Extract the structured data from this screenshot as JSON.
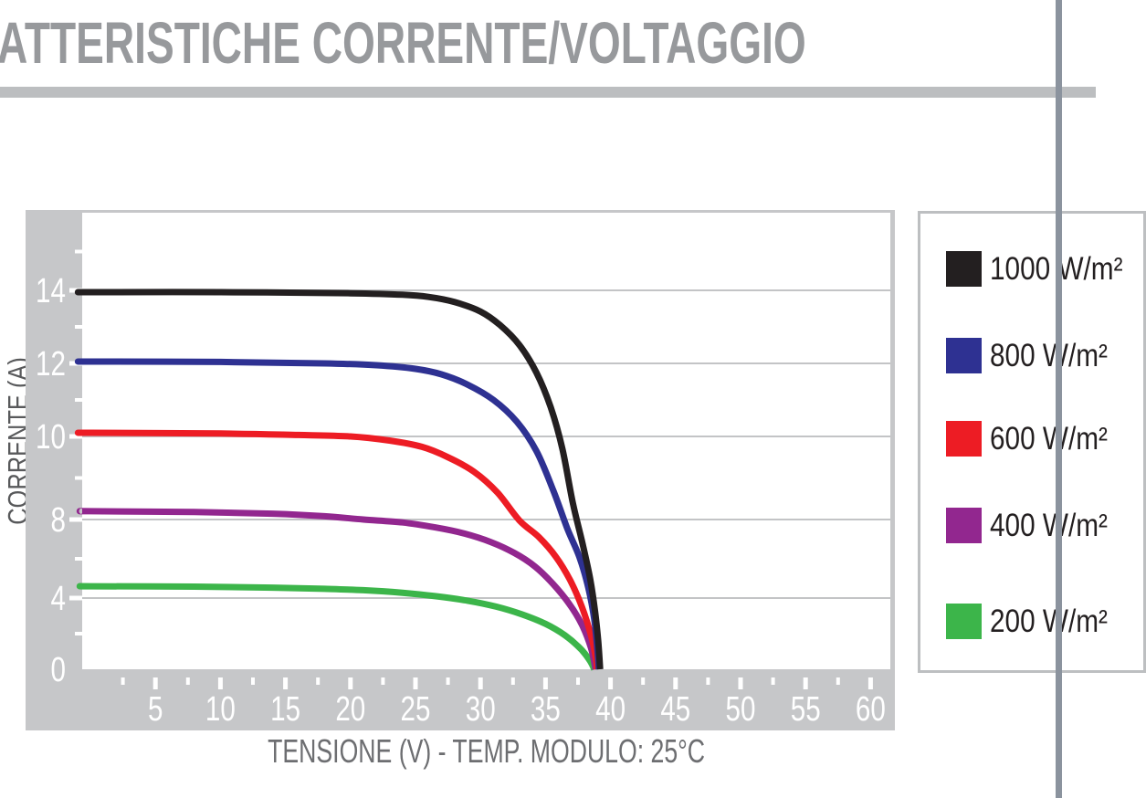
{
  "page": {
    "title": "ATTERISTICHE CORRENTE/VOLTAGGIO",
    "colors": {
      "title_text": "#97999c",
      "title_rule": "#bcbec0",
      "page_divider": "#8b939e",
      "chart_frame": "#c6c7c9",
      "gridline": "#c3c4c6",
      "tick_and_axis_numbers": "#ffffff",
      "axis_caption": "#6d6e71",
      "y_caption": "#58595b",
      "legend_border": "#bdbfc1",
      "legend_text": "#231f20"
    }
  },
  "chart_data": {
    "type": "line",
    "title": "ATTERISTICHE CORRENTE/VOLTAGGIO",
    "xlabel": "TENSIONE (V) - TEMP. MODULO: 25°C",
    "ylabel": "CORRENTE (A)",
    "xlim": [
      0,
      62
    ],
    "x_major_ticks": [
      5,
      10,
      15,
      20,
      25,
      30,
      35,
      40,
      45,
      50,
      55,
      60
    ],
    "x_minor_ticks": [
      2.5,
      7.5,
      12.5,
      17.5,
      22.5,
      27.5,
      32.5,
      37.5,
      42.5,
      47.5,
      52.5,
      57.5
    ],
    "y_tick_labels": [
      0,
      4,
      8,
      10,
      12,
      14
    ],
    "y_ticks_equally_spaced_as_drawn": true,
    "grid": "horizontal-only",
    "legend_position": "right-box",
    "series": [
      {
        "name": "1000 W/m²",
        "color": "#231f20",
        "isc_A": 13.95,
        "voc_V": 39.2,
        "points": [
          [
            0,
            13.95
          ],
          [
            10,
            13.95
          ],
          [
            20,
            13.92
          ],
          [
            24,
            13.88
          ],
          [
            26,
            13.82
          ],
          [
            28,
            13.68
          ],
          [
            30,
            13.42
          ],
          [
            31.5,
            13.05
          ],
          [
            33,
            12.5
          ],
          [
            34.3,
            11.75
          ],
          [
            35.4,
            10.8
          ],
          [
            36.3,
            9.7
          ],
          [
            37.1,
            8.4
          ],
          [
            37.8,
            6.9
          ],
          [
            38.4,
            5.1
          ],
          [
            38.8,
            3.3
          ],
          [
            39.05,
            1.6
          ],
          [
            39.2,
            0
          ]
        ]
      },
      {
        "name": "800 W/m²",
        "color": "#2e3192",
        "isc_A": 12.05,
        "voc_V": 39.1,
        "points": [
          [
            0,
            12.05
          ],
          [
            10,
            12.04
          ],
          [
            18,
            12.0
          ],
          [
            22,
            11.95
          ],
          [
            25,
            11.85
          ],
          [
            27,
            11.7
          ],
          [
            29,
            11.42
          ],
          [
            31,
            11.0
          ],
          [
            32.8,
            10.4
          ],
          [
            34.3,
            9.65
          ],
          [
            35.6,
            8.7
          ],
          [
            36.7,
            7.5
          ],
          [
            37.6,
            6.1
          ],
          [
            38.3,
            4.5
          ],
          [
            38.75,
            2.8
          ],
          [
            39.0,
            1.0
          ],
          [
            39.1,
            0
          ]
        ]
      },
      {
        "name": "600 W/m²",
        "color": "#ed1c24",
        "isc_A": 10.1,
        "voc_V": 38.95,
        "points": [
          [
            0,
            10.1
          ],
          [
            10,
            10.08
          ],
          [
            16,
            10.04
          ],
          [
            20,
            10.0
          ],
          [
            23,
            9.9
          ],
          [
            25.5,
            9.75
          ],
          [
            27.5,
            9.5
          ],
          [
            29.5,
            9.15
          ],
          [
            31.3,
            8.65
          ],
          [
            33,
            7.95
          ],
          [
            34.5,
            7.1
          ],
          [
            35.8,
            6.1
          ],
          [
            36.9,
            4.9
          ],
          [
            37.8,
            3.5
          ],
          [
            38.5,
            1.9
          ],
          [
            38.9,
            0.5
          ],
          [
            38.95,
            0
          ]
        ]
      },
      {
        "name": "400 W/m²",
        "color": "#92278f",
        "isc_A": 8.2,
        "voc_V": 38.85,
        "points": [
          [
            0,
            8.2
          ],
          [
            8,
            8.18
          ],
          [
            14,
            8.14
          ],
          [
            18,
            8.08
          ],
          [
            21,
            8.0
          ],
          [
            24,
            7.85
          ],
          [
            26.5,
            7.6
          ],
          [
            28.8,
            7.28
          ],
          [
            30.8,
            6.85
          ],
          [
            32.6,
            6.3
          ],
          [
            34.2,
            5.6
          ],
          [
            35.6,
            4.7
          ],
          [
            36.8,
            3.7
          ],
          [
            37.8,
            2.5
          ],
          [
            38.5,
            1.2
          ],
          [
            38.85,
            0
          ]
        ]
      },
      {
        "name": "200 W/m²",
        "color": "#3cb54a",
        "isc_A": 4.6,
        "voc_V": 38.75,
        "points": [
          [
            0,
            4.6
          ],
          [
            8,
            4.58
          ],
          [
            14,
            4.53
          ],
          [
            18,
            4.47
          ],
          [
            21,
            4.4
          ],
          [
            24,
            4.27
          ],
          [
            26.5,
            4.1
          ],
          [
            29,
            3.85
          ],
          [
            31.2,
            3.52
          ],
          [
            33.2,
            3.08
          ],
          [
            35,
            2.55
          ],
          [
            36.5,
            1.9
          ],
          [
            37.7,
            1.15
          ],
          [
            38.4,
            0.5
          ],
          [
            38.75,
            0
          ]
        ]
      }
    ]
  },
  "legend": {
    "items": [
      {
        "label": "1000 W/m²",
        "color": "#231f20"
      },
      {
        "label": "800 W/m²",
        "color": "#2e3192"
      },
      {
        "label": "600 W/m²",
        "color": "#ed1c24"
      },
      {
        "label": "400 W/m²",
        "color": "#92278f"
      },
      {
        "label": "200 W/m²",
        "color": "#3cb54a"
      }
    ]
  }
}
